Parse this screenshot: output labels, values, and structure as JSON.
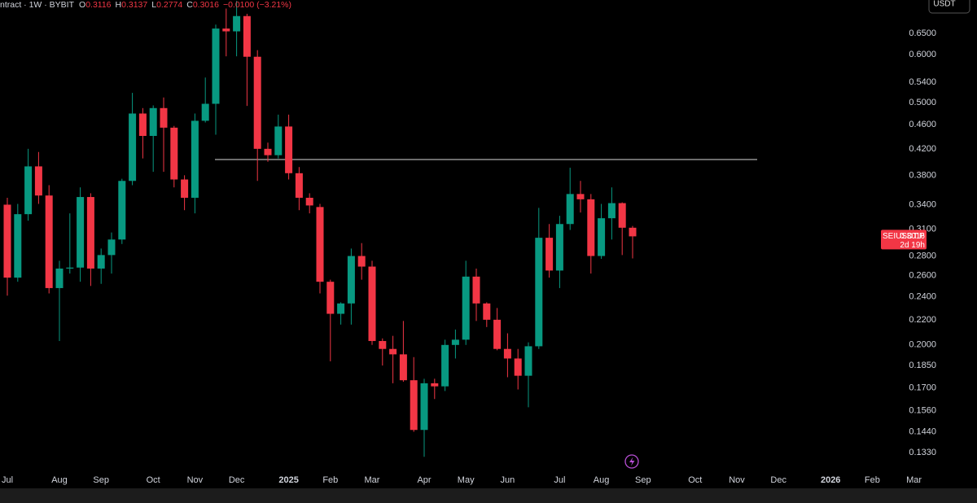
{
  "chart_data": {
    "type": "candlestick",
    "header": {
      "source": "ntract · 1W · BYBIT",
      "fields": [
        {
          "label": "O",
          "value": "0.3116"
        },
        {
          "label": "H",
          "value": "0.3137"
        },
        {
          "label": "L",
          "value": "0.2774"
        },
        {
          "label": "C",
          "value": "0.3016"
        }
      ],
      "change": "−0.0100 (−3.21%)"
    },
    "currency": "USDT",
    "categories": [
      "Jul",
      null,
      null,
      null,
      null,
      "Aug",
      null,
      null,
      null,
      "Sep",
      null,
      null,
      null,
      null,
      "Oct",
      null,
      null,
      null,
      "Nov",
      null,
      null,
      null,
      "Dec",
      null,
      null,
      null,
      null,
      "2025",
      null,
      null,
      null,
      "Feb",
      null,
      null,
      null,
      "Mar",
      null,
      null,
      null,
      null,
      "Apr",
      null,
      null,
      null,
      "May",
      null,
      null,
      null,
      "Jun",
      null,
      null,
      null,
      null,
      "Jul",
      null,
      null,
      null,
      "Aug",
      null,
      null,
      null,
      "Sep",
      null,
      null,
      null,
      null,
      "Oct",
      null,
      null,
      null,
      "Nov",
      null,
      null,
      null,
      "Dec",
      null,
      null,
      null,
      null,
      "2026",
      null,
      null,
      null,
      "Feb",
      null,
      null,
      null,
      "Mar",
      null
    ],
    "open": [
      0.34,
      0.258,
      0.328,
      0.393,
      0.352,
      0.248,
      0.267,
      0.268,
      0.35,
      0.267,
      0.281,
      0.298,
      0.372,
      0.48,
      0.441,
      0.49,
      0.455,
      0.374,
      0.349,
      0.467,
      0.498,
      0.662,
      0.655,
      0.694,
      0.595,
      0.42,
      0.41,
      0.457,
      0.383,
      0.349,
      0.337,
      0.254,
      0.225,
      0.234,
      0.28,
      0.269,
      0.203,
      0.197,
      0.193,
      0.175,
      0.145,
      0.173,
      0.171,
      0.2,
      0.204,
      0.259,
      0.234,
      0.22,
      0.197,
      0.19,
      0.178,
      0.199,
      0.3,
      0.265,
      0.316,
      0.354,
      0.347,
      0.28,
      0.323,
      0.342,
      0.3116,
      null,
      null,
      null,
      null,
      null,
      null,
      null,
      null,
      null,
      null,
      null,
      null,
      null,
      null,
      null,
      null,
      null,
      null,
      null,
      null,
      null,
      null,
      null,
      null,
      null,
      null,
      null,
      null
    ],
    "high": [
      0.349,
      0.341,
      0.42,
      0.415,
      0.366,
      0.275,
      0.329,
      0.363,
      0.355,
      0.288,
      0.306,
      0.375,
      0.519,
      0.49,
      0.495,
      0.51,
      0.458,
      0.38,
      0.48,
      0.55,
      0.672,
      0.714,
      0.735,
      0.7,
      0.61,
      0.43,
      0.478,
      0.478,
      0.392,
      0.355,
      0.341,
      0.256,
      0.235,
      0.288,
      0.294,
      0.275,
      0.205,
      0.207,
      0.219,
      0.191,
      0.176,
      0.176,
      0.204,
      0.212,
      0.275,
      0.267,
      0.235,
      0.23,
      0.209,
      0.197,
      0.202,
      0.336,
      0.316,
      0.326,
      0.391,
      0.372,
      0.354,
      0.341,
      0.363,
      0.343,
      0.3137,
      null,
      null,
      null,
      null,
      null,
      null,
      null,
      null,
      null,
      null,
      null,
      null,
      null,
      null,
      null,
      null,
      null,
      null,
      null,
      null,
      null,
      null,
      null,
      null,
      null,
      null,
      null,
      null
    ],
    "low": [
      0.241,
      0.254,
      0.32,
      0.341,
      0.243,
      0.203,
      0.262,
      0.254,
      0.25,
      0.252,
      0.262,
      0.293,
      0.366,
      0.405,
      0.385,
      0.385,
      0.363,
      0.333,
      0.329,
      0.464,
      0.443,
      0.596,
      0.596,
      0.494,
      0.372,
      0.4,
      0.405,
      0.374,
      0.333,
      0.329,
      0.243,
      0.188,
      0.216,
      0.216,
      0.256,
      0.2,
      0.185,
      0.173,
      0.174,
      0.144,
      0.131,
      0.163,
      0.168,
      0.19,
      0.2,
      0.219,
      0.214,
      0.196,
      0.177,
      0.169,
      0.158,
      0.197,
      0.258,
      0.248,
      0.309,
      0.33,
      0.262,
      0.277,
      0.298,
      0.281,
      0.2774,
      null,
      null,
      null,
      null,
      null,
      null,
      null,
      null,
      null,
      null,
      null,
      null,
      null,
      null,
      null,
      null,
      null,
      null,
      null,
      null,
      null,
      null,
      null,
      null,
      null,
      null,
      null,
      null
    ],
    "close": [
      0.258,
      0.328,
      0.393,
      0.352,
      0.248,
      0.267,
      0.268,
      0.35,
      0.267,
      0.281,
      0.298,
      0.372,
      0.48,
      0.441,
      0.49,
      0.455,
      0.374,
      0.349,
      0.467,
      0.498,
      0.662,
      0.655,
      0.694,
      0.595,
      0.42,
      0.41,
      0.457,
      0.383,
      0.349,
      0.339,
      0.254,
      0.225,
      0.234,
      0.28,
      0.269,
      0.203,
      0.197,
      0.193,
      0.175,
      0.145,
      0.173,
      0.171,
      0.2,
      0.204,
      0.259,
      0.234,
      0.22,
      0.197,
      0.19,
      0.178,
      0.199,
      0.3,
      0.265,
      0.316,
      0.354,
      0.347,
      0.28,
      0.323,
      0.342,
      0.3116,
      0.3016,
      null,
      null,
      null,
      null,
      null,
      null,
      null,
      null,
      null,
      null,
      null,
      null,
      null,
      null,
      null,
      null,
      null,
      null,
      null,
      null,
      null,
      null,
      null,
      null,
      null,
      null,
      null,
      null
    ],
    "up_color": "#089981",
    "down_color": "#f23645",
    "log_scale": true,
    "ylim": [
      0.1244,
      0.7375
    ],
    "yticks": [
      {
        "value": 0.65,
        "label": "0.6500"
      },
      {
        "value": 0.6,
        "label": "0.6000"
      },
      {
        "value": 0.54,
        "label": "0.5400"
      },
      {
        "value": 0.5,
        "label": "0.5000"
      },
      {
        "value": 0.46,
        "label": "0.4600"
      },
      {
        "value": 0.42,
        "label": "0.4200"
      },
      {
        "value": 0.38,
        "label": "0.3800"
      },
      {
        "value": 0.34,
        "label": "0.3400"
      },
      {
        "value": 0.31,
        "label": "0.3100"
      },
      {
        "value": 0.28,
        "label": "0.2800"
      },
      {
        "value": 0.26,
        "label": "0.2600"
      },
      {
        "value": 0.24,
        "label": "0.2400"
      },
      {
        "value": 0.22,
        "label": "0.2200"
      },
      {
        "value": 0.2,
        "label": "0.2000"
      },
      {
        "value": 0.185,
        "label": "0.1850"
      },
      {
        "value": 0.17,
        "label": "0.1700"
      },
      {
        "value": 0.156,
        "label": "0.1560"
      },
      {
        "value": 0.144,
        "label": "0.1440"
      },
      {
        "value": 0.133,
        "label": "0.1330"
      }
    ],
    "grid": false,
    "hline": {
      "value": 0.4033,
      "color": "#d9d9d9"
    },
    "last_price": {
      "symbol": "SEIUSDT.P",
      "value": 0.3016,
      "countdown": "2d 19h",
      "color": "#f23645"
    }
  }
}
